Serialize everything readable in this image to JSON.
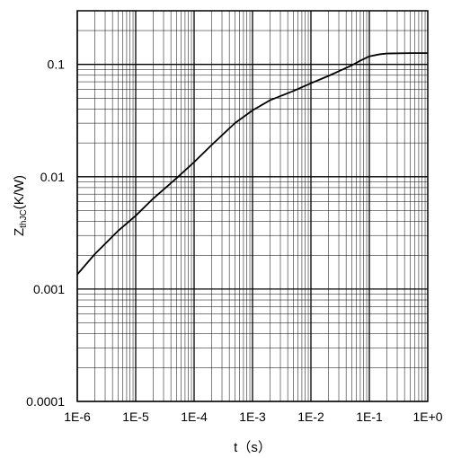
{
  "chart_data": {
    "type": "line",
    "xscale": "log",
    "yscale": "log",
    "xlim": [
      1e-06,
      1
    ],
    "ylim": [
      0.0001,
      0.3
    ],
    "grid": true,
    "legend": "none",
    "xlabel": "t（s）",
    "ylabel_main": "Z",
    "ylabel_sub": "thJC",
    "ylabel_rest": "(K/W)",
    "x_tick_values": [
      1e-06,
      1e-05,
      0.0001,
      0.001,
      0.01,
      0.1,
      1
    ],
    "x_tick_labels": [
      "1E-6",
      "1E-5",
      "1E-4",
      "1E-3",
      "1E-2",
      "1E-1",
      "1E+0"
    ],
    "y_tick_values": [
      0.0001,
      0.001,
      0.01,
      0.1
    ],
    "y_tick_labels": [
      "0.0001",
      "0.001",
      "0.01",
      "0.1"
    ],
    "line_color": "#000000",
    "grid_color": "#000000",
    "series": [
      {
        "x": [
          1e-06,
          2e-06,
          5e-06,
          1e-05,
          2e-05,
          5e-05,
          0.0001,
          0.0002,
          0.0005,
          0.001,
          0.002,
          0.005,
          0.01,
          0.02,
          0.05,
          0.07,
          0.1,
          0.15,
          0.2,
          0.5,
          1
        ],
        "y": [
          0.00135,
          0.00205,
          0.0033,
          0.0045,
          0.0064,
          0.0097,
          0.0135,
          0.0192,
          0.03,
          0.039,
          0.048,
          0.058,
          0.068,
          0.079,
          0.098,
          0.108,
          0.118,
          0.123,
          0.125,
          0.126,
          0.126
        ]
      }
    ]
  }
}
